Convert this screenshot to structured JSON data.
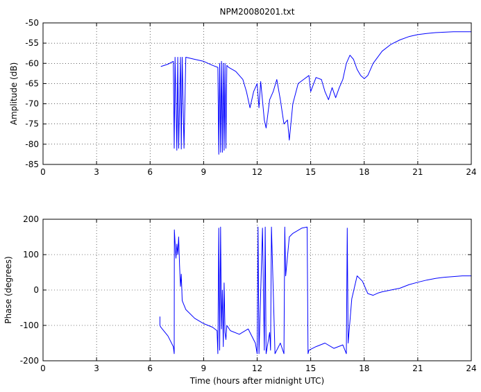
{
  "chart_data": [
    {
      "type": "line",
      "title": "NPM20080201.txt",
      "xlabel": "",
      "ylabel": "Amplitude (dB)",
      "xlim": [
        0,
        24
      ],
      "ylim": [
        -85,
        -50
      ],
      "xticks": [
        "0",
        "3",
        "6",
        "9",
        "12",
        "15",
        "18",
        "21",
        "24"
      ],
      "yticks": [
        "-50",
        "-55",
        "-60",
        "-65",
        "-70",
        "-75",
        "-80",
        "-85"
      ],
      "grid": true,
      "series": [
        {
          "color": "#0000ff",
          "x": [
            6.6,
            7.0,
            7.3,
            7.35,
            7.4,
            7.5,
            7.55,
            7.6,
            7.7,
            7.75,
            7.8,
            7.9,
            8.0,
            8.5,
            9.0,
            9.5,
            9.8,
            9.85,
            9.9,
            9.95,
            10.0,
            10.05,
            10.1,
            10.15,
            10.2,
            10.25,
            10.3,
            10.4,
            10.8,
            11.2,
            11.4,
            11.6,
            11.8,
            12.0,
            12.1,
            12.2,
            12.4,
            12.5,
            12.7,
            12.9,
            13.1,
            13.3,
            13.5,
            13.7,
            13.8,
            14.0,
            14.3,
            14.6,
            14.9,
            15.0,
            15.3,
            15.6,
            15.8,
            16.0,
            16.2,
            16.4,
            16.6,
            16.8,
            17.0,
            17.2,
            17.4,
            17.6,
            17.8,
            18.0,
            18.2,
            18.5,
            19.0,
            19.5,
            20.0,
            20.5,
            21.0,
            21.5,
            22.0,
            22.5,
            23.0,
            23.5,
            24.0
          ],
          "values": [
            -60.8,
            -60.2,
            -59.5,
            -81.0,
            -58.5,
            -81.5,
            -58.5,
            -81.0,
            -58.5,
            -81.2,
            -58.5,
            -81.0,
            -58.5,
            -59.0,
            -59.5,
            -60.5,
            -61.0,
            -82.5,
            -60.0,
            -82.0,
            -59.5,
            -82.0,
            -60.0,
            -81.5,
            -60.0,
            -81.0,
            -60.5,
            -61.0,
            -62.0,
            -64.0,
            -67.0,
            -71.0,
            -67.0,
            -65.0,
            -71.0,
            -64.5,
            -74.0,
            -76.0,
            -69.0,
            -67.0,
            -64.0,
            -69.0,
            -75.0,
            -74.0,
            -79.0,
            -70.0,
            -65.0,
            -64.0,
            -63.0,
            -67.0,
            -63.5,
            -64.0,
            -67.0,
            -69.0,
            -66.0,
            -68.5,
            -66.0,
            -64.0,
            -60.0,
            -58.0,
            -59.0,
            -61.5,
            -63.0,
            -63.8,
            -63.0,
            -60.0,
            -57.0,
            -55.3,
            -54.2,
            -53.4,
            -52.9,
            -52.6,
            -52.4,
            -52.3,
            -52.2,
            -52.2,
            -52.2
          ]
        }
      ]
    },
    {
      "type": "line",
      "title": "",
      "xlabel": "Time (hours after midnight UTC)",
      "ylabel": "Phase (degrees)",
      "xlim": [
        0,
        24
      ],
      "ylim": [
        -200,
        200
      ],
      "xticks": [
        "0",
        "3",
        "6",
        "9",
        "12",
        "15",
        "18",
        "21",
        "24"
      ],
      "yticks": [
        "200",
        "100",
        "0",
        "-100",
        "-200"
      ],
      "grid": true,
      "series": [
        {
          "color": "#0000ff",
          "x": [
            6.55,
            6.55,
            6.6,
            7.0,
            7.3,
            7.35,
            7.36,
            7.45,
            7.5,
            7.55,
            7.6,
            7.65,
            7.7,
            7.75,
            7.8,
            8.0,
            8.5,
            9.0,
            9.5,
            9.75,
            9.8,
            9.85,
            9.9,
            9.95,
            10.0,
            10.05,
            10.1,
            10.15,
            10.2,
            10.25,
            10.3,
            10.5,
            11.0,
            11.5,
            11.9,
            12.0,
            12.05,
            12.1,
            12.3,
            12.4,
            12.45,
            12.5,
            12.7,
            12.75,
            12.8,
            13.0,
            13.3,
            13.5,
            13.55,
            13.6,
            13.8,
            14.0,
            14.5,
            14.8,
            14.85,
            14.9,
            15.3,
            15.8,
            16.3,
            16.8,
            17.0,
            17.05,
            17.1,
            17.3,
            17.6,
            17.9,
            18.2,
            18.5,
            18.8,
            19.0,
            19.5,
            20.0,
            20.5,
            21.0,
            21.5,
            22.0,
            22.5,
            23.0,
            23.5,
            24.0
          ],
          "values": [
            -75,
            -100,
            -105,
            -130,
            -160,
            -180,
            170,
            90,
            130,
            100,
            150,
            70,
            10,
            45,
            -30,
            -55,
            -80,
            -95,
            -105,
            -115,
            -180,
            175,
            -170,
            178,
            -110,
            0,
            -160,
            20,
            -120,
            -140,
            -100,
            -115,
            -125,
            -110,
            -150,
            -180,
            178,
            -180,
            175,
            -170,
            178,
            -180,
            -120,
            -170,
            178,
            -180,
            -150,
            -180,
            178,
            40,
            150,
            160,
            175,
            178,
            -180,
            -170,
            -160,
            -150,
            -165,
            -155,
            -180,
            175,
            -150,
            -25,
            40,
            25,
            -10,
            -15,
            -8,
            -5,
            0,
            5,
            15,
            22,
            28,
            33,
            36,
            38,
            40,
            40
          ]
        }
      ]
    }
  ]
}
